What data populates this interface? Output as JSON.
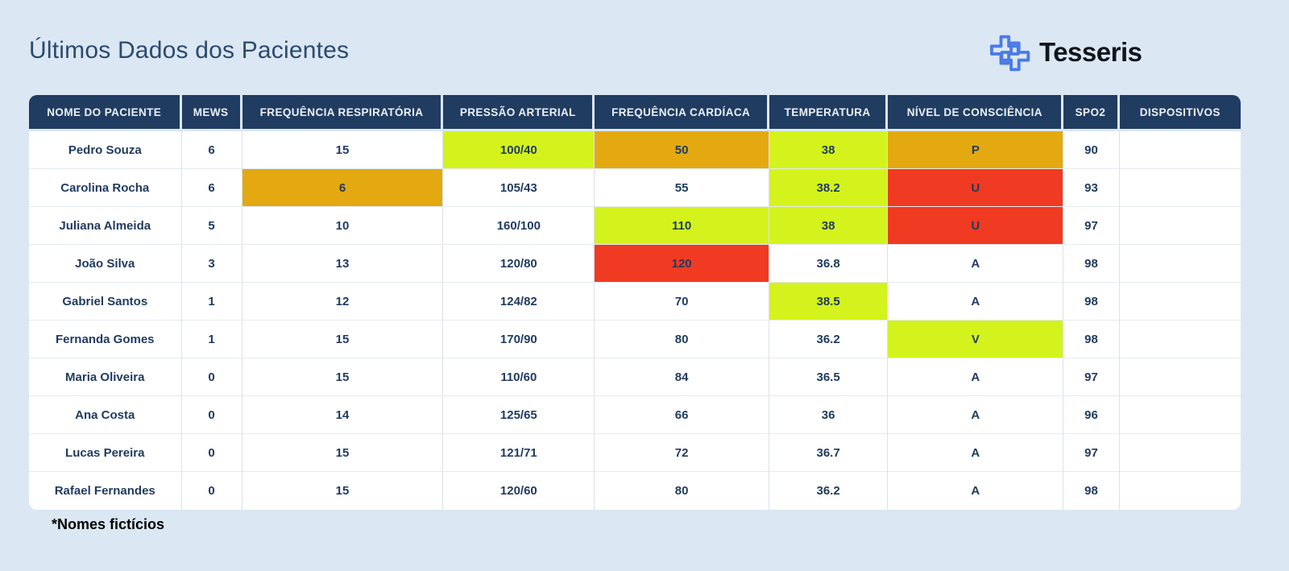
{
  "page": {
    "title": "Últimos Dados dos Pacientes",
    "brand": "Tesseris",
    "footnote": "*Nomes fictícios"
  },
  "colors": {
    "background": "#dbe7f2",
    "header_bg": "#213c61",
    "header_text": "#eaf1f9",
    "cell_text": "#1f3a5f",
    "row_bg": "#ffffff",
    "highlight_green": "#d4f31d",
    "highlight_amber": "#e4a911",
    "highlight_red": "#f13a22",
    "logo_blue": "#4b7be5",
    "brand_text": "#10151c",
    "title_text": "#2c4a6e"
  },
  "table": {
    "columns": [
      {
        "key": "name",
        "label": "NOME DO PACIENTE",
        "width": "12.6%"
      },
      {
        "key": "mews",
        "label": "MEWS",
        "width": "5.0%"
      },
      {
        "key": "fr",
        "label": "FREQUÊNCIA RESPIRATÓRIA",
        "width": "16.6%"
      },
      {
        "key": "pa",
        "label": "PRESSÃO ARTERIAL",
        "width": "12.5%"
      },
      {
        "key": "fc",
        "label": "FREQUÊNCIA CARDÍACA",
        "width": "14.4%"
      },
      {
        "key": "temp",
        "label": "TEMPERATURA",
        "width": "9.8%"
      },
      {
        "key": "nivel",
        "label": "NÍVEL DE CONSCIÊNCIA",
        "width": "14.5%"
      },
      {
        "key": "spo2",
        "label": "SPO2",
        "width": "4.6%"
      },
      {
        "key": "disp",
        "label": "DISPOSITIVOS",
        "width": "10.0%"
      }
    ],
    "rows": [
      {
        "cells": {
          "name": "Pedro Souza",
          "mews": "6",
          "fr": "15",
          "pa": "100/40",
          "fc": "50",
          "temp": "38",
          "nivel": "P",
          "spo2": "90",
          "disp": ""
        },
        "highlights": {
          "pa": "green",
          "fc": "amber",
          "temp": "green",
          "nivel": "amber"
        }
      },
      {
        "cells": {
          "name": "Carolina Rocha",
          "mews": "6",
          "fr": "6",
          "pa": "105/43",
          "fc": "55",
          "temp": "38.2",
          "nivel": "U",
          "spo2": "93",
          "disp": ""
        },
        "highlights": {
          "fr": "amber",
          "temp": "green",
          "nivel": "red"
        }
      },
      {
        "cells": {
          "name": "Juliana Almeida",
          "mews": "5",
          "fr": "10",
          "pa": "160/100",
          "fc": "110",
          "temp": "38",
          "nivel": "U",
          "spo2": "97",
          "disp": ""
        },
        "highlights": {
          "fc": "green",
          "temp": "green",
          "nivel": "red"
        }
      },
      {
        "cells": {
          "name": "João Silva",
          "mews": "3",
          "fr": "13",
          "pa": "120/80",
          "fc": "120",
          "temp": "36.8",
          "nivel": "A",
          "spo2": "98",
          "disp": ""
        },
        "highlights": {
          "fc": "red"
        }
      },
      {
        "cells": {
          "name": "Gabriel Santos",
          "mews": "1",
          "fr": "12",
          "pa": "124/82",
          "fc": "70",
          "temp": "38.5",
          "nivel": "A",
          "spo2": "98",
          "disp": ""
        },
        "highlights": {
          "temp": "green"
        }
      },
      {
        "cells": {
          "name": "Fernanda Gomes",
          "mews": "1",
          "fr": "15",
          "pa": "170/90",
          "fc": "80",
          "temp": "36.2",
          "nivel": "V",
          "spo2": "98",
          "disp": ""
        },
        "highlights": {
          "nivel": "green"
        }
      },
      {
        "cells": {
          "name": "Maria Oliveira",
          "mews": "0",
          "fr": "15",
          "pa": "110/60",
          "fc": "84",
          "temp": "36.5",
          "nivel": "A",
          "spo2": "97",
          "disp": ""
        },
        "highlights": {}
      },
      {
        "cells": {
          "name": "Ana Costa",
          "mews": "0",
          "fr": "14",
          "pa": "125/65",
          "fc": "66",
          "temp": "36",
          "nivel": "A",
          "spo2": "96",
          "disp": ""
        },
        "highlights": {}
      },
      {
        "cells": {
          "name": "Lucas Pereira",
          "mews": "0",
          "fr": "15",
          "pa": "121/71",
          "fc": "72",
          "temp": "36.7",
          "nivel": "A",
          "spo2": "97",
          "disp": ""
        },
        "highlights": {}
      },
      {
        "cells": {
          "name": "Rafael Fernandes",
          "mews": "0",
          "fr": "15",
          "pa": "120/60",
          "fc": "80",
          "temp": "36.2",
          "nivel": "A",
          "spo2": "98",
          "disp": ""
        },
        "highlights": {}
      }
    ]
  },
  "chart_data": {
    "type": "table",
    "title": "Últimos Dados dos Pacientes",
    "columns": [
      "NOME DO PACIENTE",
      "MEWS",
      "FREQUÊNCIA RESPIRATÓRIA",
      "PRESSÃO ARTERIAL",
      "FREQUÊNCIA CARDÍACA",
      "TEMPERATURA",
      "NÍVEL DE CONSCIÊNCIA",
      "SPO2",
      "DISPOSITIVOS"
    ],
    "rows": [
      [
        "Pedro Souza",
        6,
        15,
        "100/40",
        50,
        38,
        "P",
        90,
        ""
      ],
      [
        "Carolina Rocha",
        6,
        6,
        "105/43",
        55,
        38.2,
        "U",
        93,
        ""
      ],
      [
        "Juliana Almeida",
        5,
        10,
        "160/100",
        110,
        38,
        "U",
        97,
        ""
      ],
      [
        "João Silva",
        3,
        13,
        "120/80",
        120,
        36.8,
        "A",
        98,
        ""
      ],
      [
        "Gabriel Santos",
        1,
        12,
        "124/82",
        70,
        38.5,
        "A",
        98,
        ""
      ],
      [
        "Fernanda Gomes",
        1,
        15,
        "170/90",
        80,
        36.2,
        "V",
        98,
        ""
      ],
      [
        "Maria Oliveira",
        0,
        15,
        "110/60",
        84,
        36.5,
        "A",
        97,
        ""
      ],
      [
        "Ana Costa",
        0,
        14,
        "125/65",
        66,
        36,
        "A",
        96,
        ""
      ],
      [
        "Lucas Pereira",
        0,
        15,
        "121/71",
        72,
        36.7,
        "A",
        97,
        ""
      ],
      [
        "Rafael Fernandes",
        0,
        15,
        "120/60",
        80,
        36.2,
        "A",
        98,
        ""
      ]
    ],
    "cell_status_colors": {
      "green": "#d4f31d",
      "amber": "#e4a911",
      "red": "#f13a22"
    },
    "footnote": "*Nomes fictícios"
  }
}
